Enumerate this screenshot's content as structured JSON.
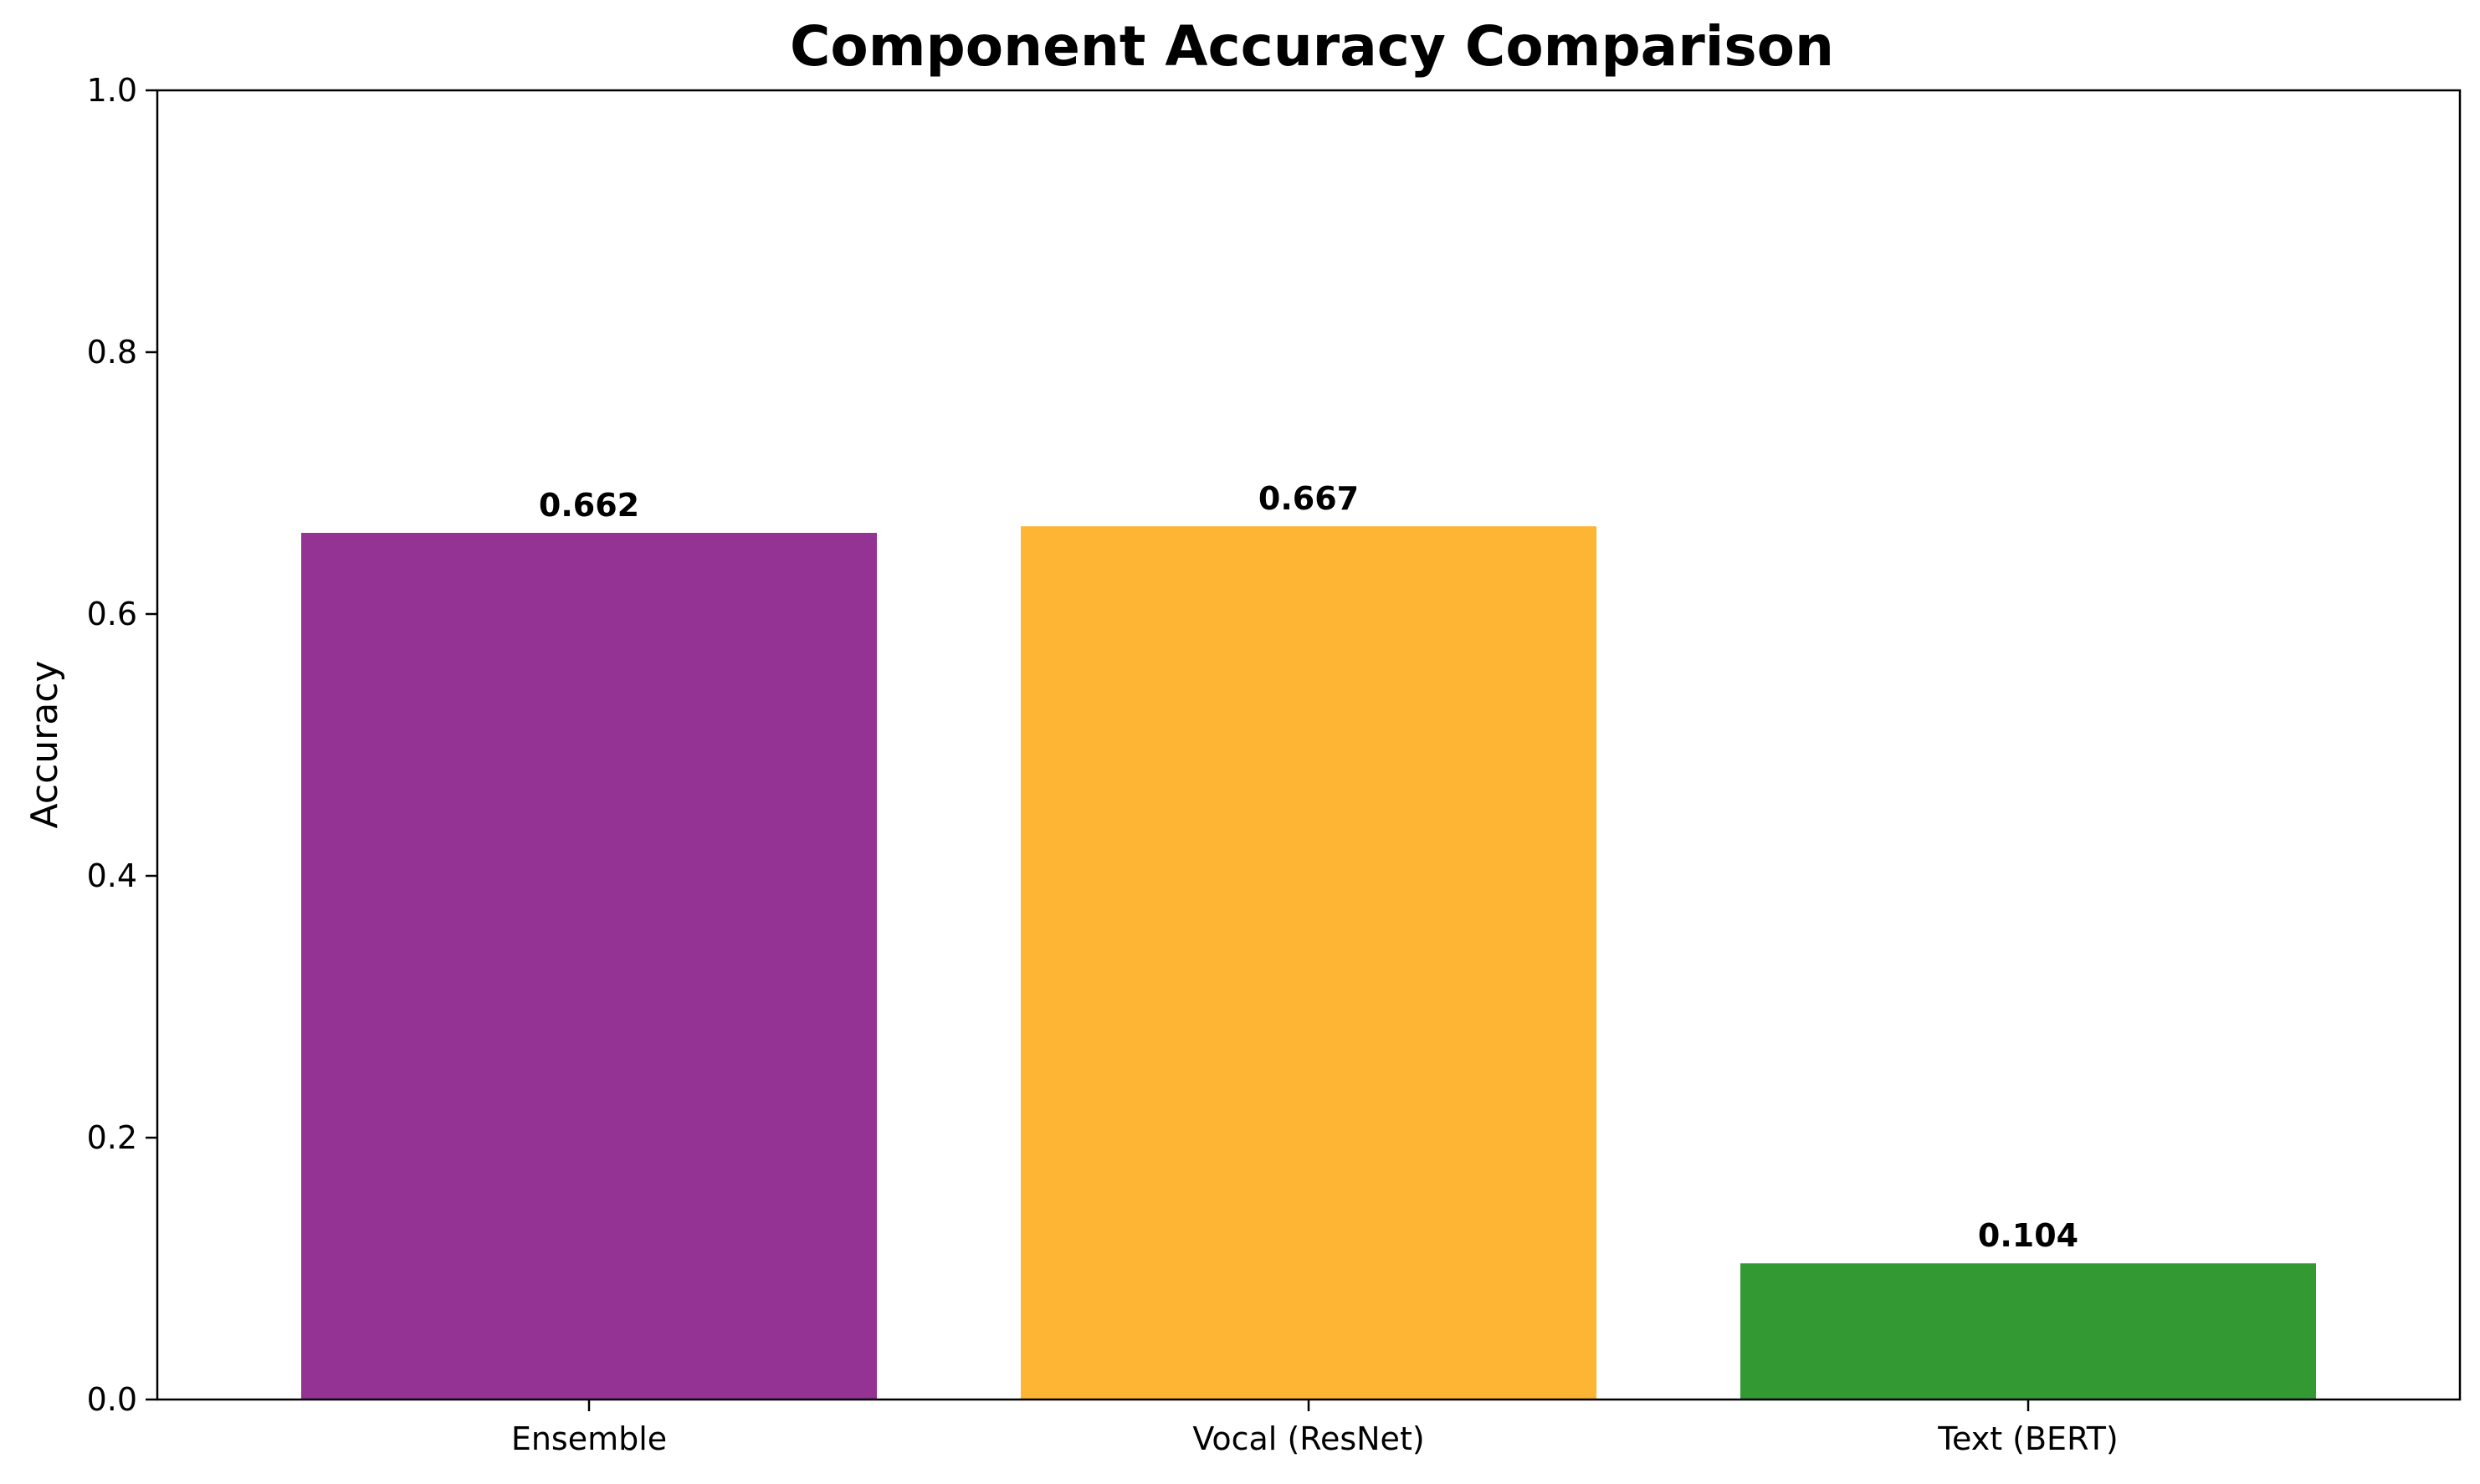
{
  "chart_data": {
    "type": "bar",
    "title": "Component Accuracy Comparison",
    "xlabel": "",
    "ylabel": "Accuracy",
    "categories": [
      "Ensemble",
      "Vocal (ResNet)",
      "Text (BERT)"
    ],
    "values": [
      0.662,
      0.667,
      0.104
    ],
    "data_labels": [
      "0.662",
      "0.667",
      "0.104"
    ],
    "colors": [
      "#953395",
      "#ffb534",
      "#339933"
    ],
    "ylim": [
      0,
      1.0
    ],
    "yticks": [
      0.0,
      0.2,
      0.4,
      0.6,
      0.8,
      1.0
    ],
    "ytick_labels": [
      "0.0",
      "0.2",
      "0.4",
      "0.6",
      "0.8",
      "1.0"
    ],
    "grid": false,
    "legend": "none"
  }
}
